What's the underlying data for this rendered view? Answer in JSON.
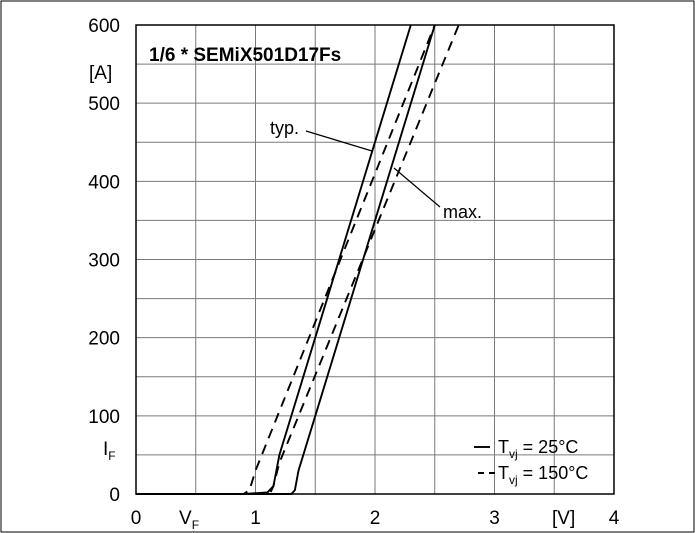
{
  "chart_data": {
    "type": "line",
    "title": "1/6 * SEMiX501D17Fs",
    "xlabel": {
      "main": "V",
      "sub": "F"
    },
    "ylabel": {
      "main": "I",
      "sub": "F"
    },
    "x_unit": "[V]",
    "y_unit": "[A]",
    "xlim": [
      0,
      4
    ],
    "ylim": [
      0,
      600
    ],
    "x_ticks": [
      "0",
      "1",
      "2",
      "3",
      "4"
    ],
    "y_ticks": [
      "0",
      "100",
      "200",
      "300",
      "400",
      "500",
      "600"
    ],
    "grid": true,
    "legend_position": "bottom-right",
    "legend": [
      {
        "style": "solid",
        "prefix": "T",
        "sub": "vj",
        "suffix": " =  25°C"
      },
      {
        "style": "dashed",
        "prefix": "T",
        "sub": "vj",
        "suffix": " = 150°C"
      }
    ],
    "annotations": [
      "typ.",
      "max."
    ],
    "series": [
      {
        "style": "solid",
        "x": [
          0,
          0.9,
          1.1,
          1.15,
          1.2,
          2.3
        ],
        "y": [
          0,
          0,
          2,
          10,
          50,
          600
        ]
      },
      {
        "style": "solid",
        "x": [
          0,
          1.3,
          1.33,
          1.36,
          1.5,
          2.5
        ],
        "y": [
          0,
          0,
          5,
          30,
          100,
          600
        ]
      },
      {
        "style": "dashed",
        "x": [
          0,
          0.9,
          0.95,
          1.0,
          2.5
        ],
        "y": [
          0,
          0,
          5,
          30,
          600
        ]
      },
      {
        "style": "dashed",
        "x": [
          0,
          1.12,
          1.15,
          1.2,
          2.7
        ],
        "y": [
          0,
          0,
          10,
          40,
          600
        ]
      }
    ]
  }
}
